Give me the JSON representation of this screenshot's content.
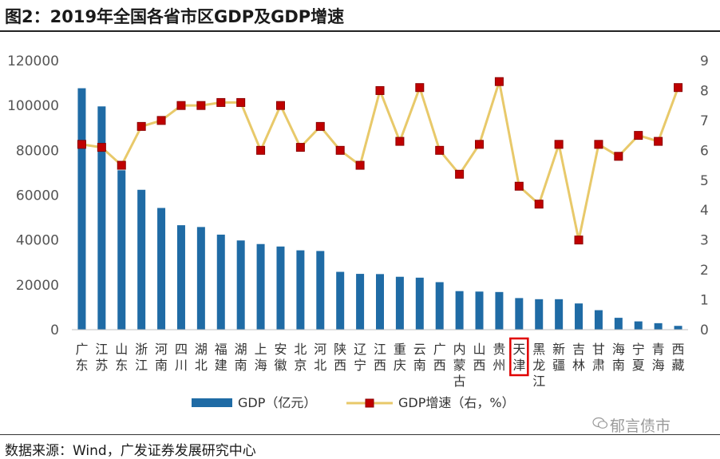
{
  "title": "图2：2019年全国各省市区GDP及GDP增速",
  "source": "数据来源：Wind，广发证券发展研究中心",
  "watermark": "郁言债市",
  "colors": {
    "bar": "#1F6BA5",
    "line": "#E8C96A",
    "marker": "#C00000",
    "marker_border": "#8B0000",
    "highlight": "#E00000"
  },
  "chart_data": {
    "type": "bar+line",
    "categories": [
      "广东",
      "江苏",
      "山东",
      "浙江",
      "河南",
      "四川",
      "湖北",
      "福建",
      "湖南",
      "上海",
      "安徽",
      "北京",
      "河北",
      "陕西",
      "辽宁",
      "江西",
      "重庆",
      "云南",
      "广西",
      "内蒙古",
      "山西",
      "贵州",
      "天津",
      "黑龙江",
      "新疆",
      "吉林",
      "甘肃",
      "海南",
      "宁夏",
      "青海",
      "西藏"
    ],
    "highlight_category": "天津",
    "series": [
      {
        "name": "GDP（亿元）",
        "type": "bar",
        "axis": "left",
        "values": [
          107700,
          99600,
          71100,
          62400,
          54300,
          46600,
          45800,
          42400,
          39800,
          38200,
          37100,
          35400,
          35100,
          25800,
          24900,
          24800,
          23600,
          23200,
          21200,
          17200,
          17000,
          16800,
          14100,
          13600,
          13600,
          11700,
          8700,
          5300,
          3700,
          2900,
          1700
        ]
      },
      {
        "name": "GDP增速（右，%）",
        "type": "line",
        "axis": "right",
        "values": [
          6.2,
          6.1,
          5.5,
          6.8,
          7.0,
          7.5,
          7.5,
          7.6,
          7.6,
          6.0,
          7.5,
          6.1,
          6.8,
          6.0,
          5.5,
          8.0,
          6.3,
          8.1,
          6.0,
          5.2,
          6.2,
          8.3,
          4.8,
          4.2,
          6.2,
          3.0,
          6.2,
          5.8,
          6.5,
          6.3,
          8.1
        ]
      }
    ],
    "y_left": {
      "min": 0,
      "max": 120000,
      "ticks": [
        "0",
        "20000",
        "40000",
        "60000",
        "80000",
        "100000",
        "120000"
      ]
    },
    "y_right": {
      "min": 0,
      "max": 9,
      "ticks": [
        "0",
        "1",
        "2",
        "3",
        "4",
        "5",
        "6",
        "7",
        "8",
        "9"
      ]
    },
    "legend_position": "bottom",
    "grid": false
  }
}
